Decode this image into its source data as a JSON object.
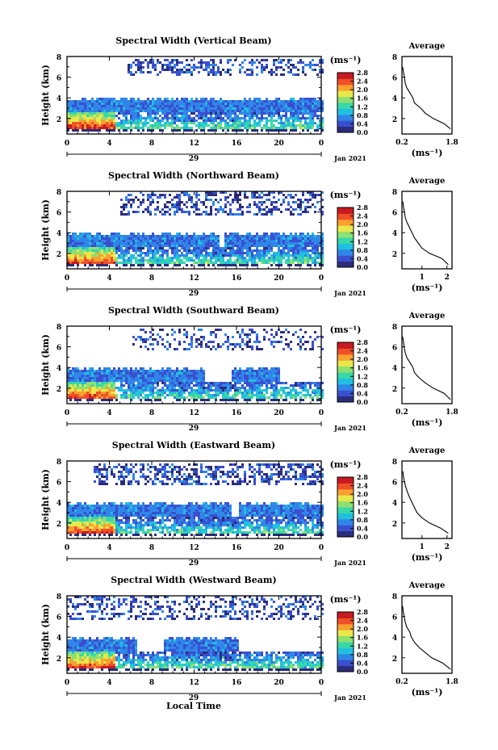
{
  "figure": {
    "xlabel_bottom": "Local Time",
    "date_label": "Jan 2021",
    "day_label": "29",
    "cbar_unit": "(ms⁻¹)",
    "avg_title": "Average",
    "avg_xlabel": "(ms⁻¹)",
    "ylabel": "Height (km)",
    "colormap": [
      "#2b2d7a",
      "#3a4fd0",
      "#2f86e8",
      "#20c0e0",
      "#38d8a8",
      "#8ee070",
      "#e8e84a",
      "#f8a030",
      "#f05028",
      "#c81a20"
    ]
  },
  "chart_data": [
    {
      "type": "heatmap",
      "title": "Spectral Width (Vertical Beam)",
      "ylabel": "Height (km)",
      "xticks": [
        "0",
        "4",
        "8",
        "12",
        "16",
        "20",
        "0"
      ],
      "yticks": [
        "8",
        "6",
        "4",
        "2"
      ],
      "ylim": [
        0.5,
        8
      ],
      "xlim_hours": [
        0,
        24
      ],
      "cbar_ticks": [
        "2.8",
        "2.4",
        "2.0",
        "1.6",
        "1.2",
        "0.8",
        "0.4",
        "0.0"
      ],
      "cbar_range": [
        0,
        2.8
      ],
      "avg": {
        "xticks": [
          "0.2",
          "1.8"
        ],
        "xlim": [
          0.2,
          1.8
        ],
        "yticks": [
          "8",
          "6",
          "4",
          "2"
        ],
        "profile": [
          [
            1.75,
            1.0
          ],
          [
            1.55,
            1.5
          ],
          [
            1.2,
            2.0
          ],
          [
            0.95,
            2.5
          ],
          [
            0.8,
            3.0
          ],
          [
            0.6,
            3.5
          ],
          [
            0.55,
            4.0
          ],
          [
            0.45,
            4.5
          ],
          [
            0.35,
            5.0
          ],
          [
            0.3,
            5.5
          ],
          [
            0.28,
            6.0
          ],
          [
            0.25,
            6.5
          ],
          [
            0.22,
            7.0
          ]
        ]
      },
      "regions": {
        "upper": {
          "hmin": 6.0,
          "hmax": 7.6,
          "t0": 5.5,
          "t1": 24,
          "density": 0.42,
          "vmax": 0.7
        },
        "band": {
          "hmin": 2.6,
          "hmax": 3.8,
          "t0": 0,
          "t1": 24,
          "gap": [
            -1,
            -1
          ],
          "vmax": 0.9
        },
        "low": {
          "hmin": 0.6,
          "hmax": 2.6,
          "t0": 0,
          "t1": 24,
          "vmax": 2.8
        }
      }
    },
    {
      "type": "heatmap",
      "title": "Spectral Width (Northward Beam)",
      "ylabel": "Height (km)",
      "xticks": [
        "0",
        "4",
        "8",
        "12",
        "16",
        "20",
        "0"
      ],
      "yticks": [
        "8",
        "6",
        "4",
        "2"
      ],
      "ylim": [
        0.5,
        8
      ],
      "xlim_hours": [
        0,
        24
      ],
      "cbar_ticks": [
        "2.8",
        "2.4",
        "2.0",
        "1.6",
        "1.2",
        "0.8",
        "0.4",
        "0.0"
      ],
      "cbar_range": [
        0,
        2.8
      ],
      "avg": {
        "xticks": [
          "1",
          "2"
        ],
        "xlim": [
          0.2,
          2.2
        ],
        "yticks": [
          "8",
          "6",
          "4",
          "2"
        ],
        "profile": [
          [
            2.05,
            0.9
          ],
          [
            1.8,
            1.5
          ],
          [
            1.3,
            2.0
          ],
          [
            1.0,
            2.5
          ],
          [
            0.85,
            3.0
          ],
          [
            0.7,
            3.5
          ],
          [
            0.6,
            4.0
          ],
          [
            0.5,
            4.5
          ],
          [
            0.4,
            5.0
          ],
          [
            0.33,
            5.5
          ],
          [
            0.3,
            6.0
          ],
          [
            0.26,
            6.5
          ],
          [
            0.24,
            7.0
          ]
        ]
      },
      "regions": {
        "upper": {
          "hmin": 5.6,
          "hmax": 7.8,
          "t0": 5.0,
          "t1": 24,
          "density": 0.38,
          "vmax": 0.7
        },
        "band": {
          "hmin": 2.5,
          "hmax": 3.8,
          "t0": 0,
          "t1": 24,
          "gap": [
            14.3,
            14.7
          ],
          "vmax": 0.9
        },
        "low": {
          "hmin": 0.6,
          "hmax": 2.5,
          "t0": 0,
          "t1": 24,
          "vmax": 2.8
        }
      }
    },
    {
      "type": "heatmap",
      "title": "Spectral Width (Southward Beam)",
      "ylabel": "Height (km)",
      "xticks": [
        "0",
        "4",
        "8",
        "12",
        "16",
        "20",
        "0"
      ],
      "yticks": [
        "8",
        "6",
        "4",
        "2"
      ],
      "ylim": [
        0.5,
        8
      ],
      "xlim_hours": [
        0,
        24
      ],
      "cbar_ticks": [
        "2.8",
        "2.4",
        "2.0",
        "1.6",
        "1.2",
        "0.8",
        "0.4",
        "0.0"
      ],
      "cbar_range": [
        0,
        2.8
      ],
      "avg": {
        "xticks": [
          "0.2",
          "1.8"
        ],
        "xlim": [
          0.2,
          1.8
        ],
        "yticks": [
          "8",
          "6",
          "4",
          "2"
        ],
        "profile": [
          [
            1.75,
            0.9
          ],
          [
            1.55,
            1.5
          ],
          [
            1.2,
            2.0
          ],
          [
            0.95,
            2.5
          ],
          [
            0.75,
            3.0
          ],
          [
            0.6,
            3.5
          ],
          [
            0.55,
            4.0
          ],
          [
            0.45,
            4.5
          ],
          [
            0.35,
            5.0
          ],
          [
            0.3,
            5.5
          ],
          [
            0.27,
            6.0
          ],
          [
            0.25,
            6.5
          ],
          [
            0.22,
            7.0
          ]
        ]
      },
      "regions": {
        "upper": {
          "hmin": 5.6,
          "hmax": 7.6,
          "t0": 6.0,
          "t1": 24,
          "density": 0.3,
          "vmax": 0.7
        },
        "band": {
          "hmin": 2.6,
          "hmax": 3.8,
          "t0": 0,
          "t1": 20,
          "gap": [
            13.0,
            15.5
          ],
          "vmax": 0.9
        },
        "low": {
          "hmin": 0.6,
          "hmax": 2.5,
          "t0": 0,
          "t1": 24,
          "vmax": 2.8
        }
      }
    },
    {
      "type": "heatmap",
      "title": "Spectral Width (Eastward Beam)",
      "ylabel": "Height (km)",
      "xticks": [
        "0",
        "4",
        "8",
        "12",
        "16",
        "20",
        "0"
      ],
      "yticks": [
        "8",
        "6",
        "4",
        "2"
      ],
      "ylim": [
        0.5,
        8
      ],
      "xlim_hours": [
        0,
        24
      ],
      "cbar_ticks": [
        "2.8",
        "2.4",
        "2.0",
        "1.6",
        "1.2",
        "0.8",
        "0.4",
        "0.0"
      ],
      "cbar_range": [
        0,
        2.8
      ],
      "avg": {
        "xticks": [
          "1",
          "2"
        ],
        "xlim": [
          0.2,
          2.2
        ],
        "yticks": [
          "8",
          "6",
          "4",
          "2"
        ],
        "profile": [
          [
            2.05,
            1.0
          ],
          [
            1.75,
            1.5
          ],
          [
            1.3,
            2.0
          ],
          [
            1.0,
            2.5
          ],
          [
            0.8,
            3.0
          ],
          [
            0.7,
            3.5
          ],
          [
            0.6,
            4.0
          ],
          [
            0.5,
            4.5
          ],
          [
            0.42,
            5.0
          ],
          [
            0.35,
            5.5
          ],
          [
            0.3,
            6.0
          ],
          [
            0.26,
            6.5
          ],
          [
            0.24,
            7.0
          ]
        ]
      },
      "regions": {
        "upper": {
          "hmin": 5.6,
          "hmax": 7.6,
          "t0": 2.5,
          "t1": 24,
          "density": 0.5,
          "vmax": 0.7
        },
        "band": {
          "hmin": 2.4,
          "hmax": 3.8,
          "t0": 0,
          "t1": 24,
          "gap": [
            15.5,
            16.2
          ],
          "vmax": 0.9
        },
        "low": {
          "hmin": 0.6,
          "hmax": 2.4,
          "t0": 0,
          "t1": 24,
          "vmax": 2.8
        }
      }
    },
    {
      "type": "heatmap",
      "title": "Spectral Width (Westward Beam)",
      "ylabel": "Height (km)",
      "xticks": [
        "0",
        "4",
        "8",
        "12",
        "16",
        "20",
        "0"
      ],
      "yticks": [
        "8",
        "6",
        "4",
        "2"
      ],
      "ylim": [
        0.5,
        8
      ],
      "xlim_hours": [
        0,
        24
      ],
      "cbar_ticks": [
        "2.8",
        "2.4",
        "2.0",
        "1.6",
        "1.2",
        "0.8",
        "0.4",
        "0.0"
      ],
      "cbar_range": [
        0,
        2.8
      ],
      "avg": {
        "xticks": [
          "0.2",
          "1.8"
        ],
        "xlim": [
          0.2,
          1.8
        ],
        "yticks": [
          "8",
          "6",
          "4",
          "2"
        ],
        "profile": [
          [
            1.75,
            0.9
          ],
          [
            1.5,
            1.5
          ],
          [
            1.15,
            2.0
          ],
          [
            0.95,
            2.5
          ],
          [
            0.75,
            3.0
          ],
          [
            0.6,
            3.5
          ],
          [
            0.5,
            4.0
          ],
          [
            0.45,
            4.5
          ],
          [
            0.35,
            5.0
          ],
          [
            0.3,
            5.5
          ],
          [
            0.27,
            6.0
          ],
          [
            0.24,
            6.5
          ],
          [
            0.22,
            7.0
          ]
        ]
      },
      "regions": {
        "upper": {
          "hmin": 5.6,
          "hmax": 7.8,
          "t0": 0,
          "t1": 24,
          "density": 0.35,
          "vmax": 0.7
        },
        "band": {
          "hmin": 2.6,
          "hmax": 3.8,
          "t0": 0,
          "t1": 16,
          "gap": [
            6.5,
            9.0
          ],
          "vmax": 0.9
        },
        "low": {
          "hmin": 0.6,
          "hmax": 2.5,
          "t0": 0,
          "t1": 24,
          "vmax": 2.8
        }
      }
    }
  ]
}
